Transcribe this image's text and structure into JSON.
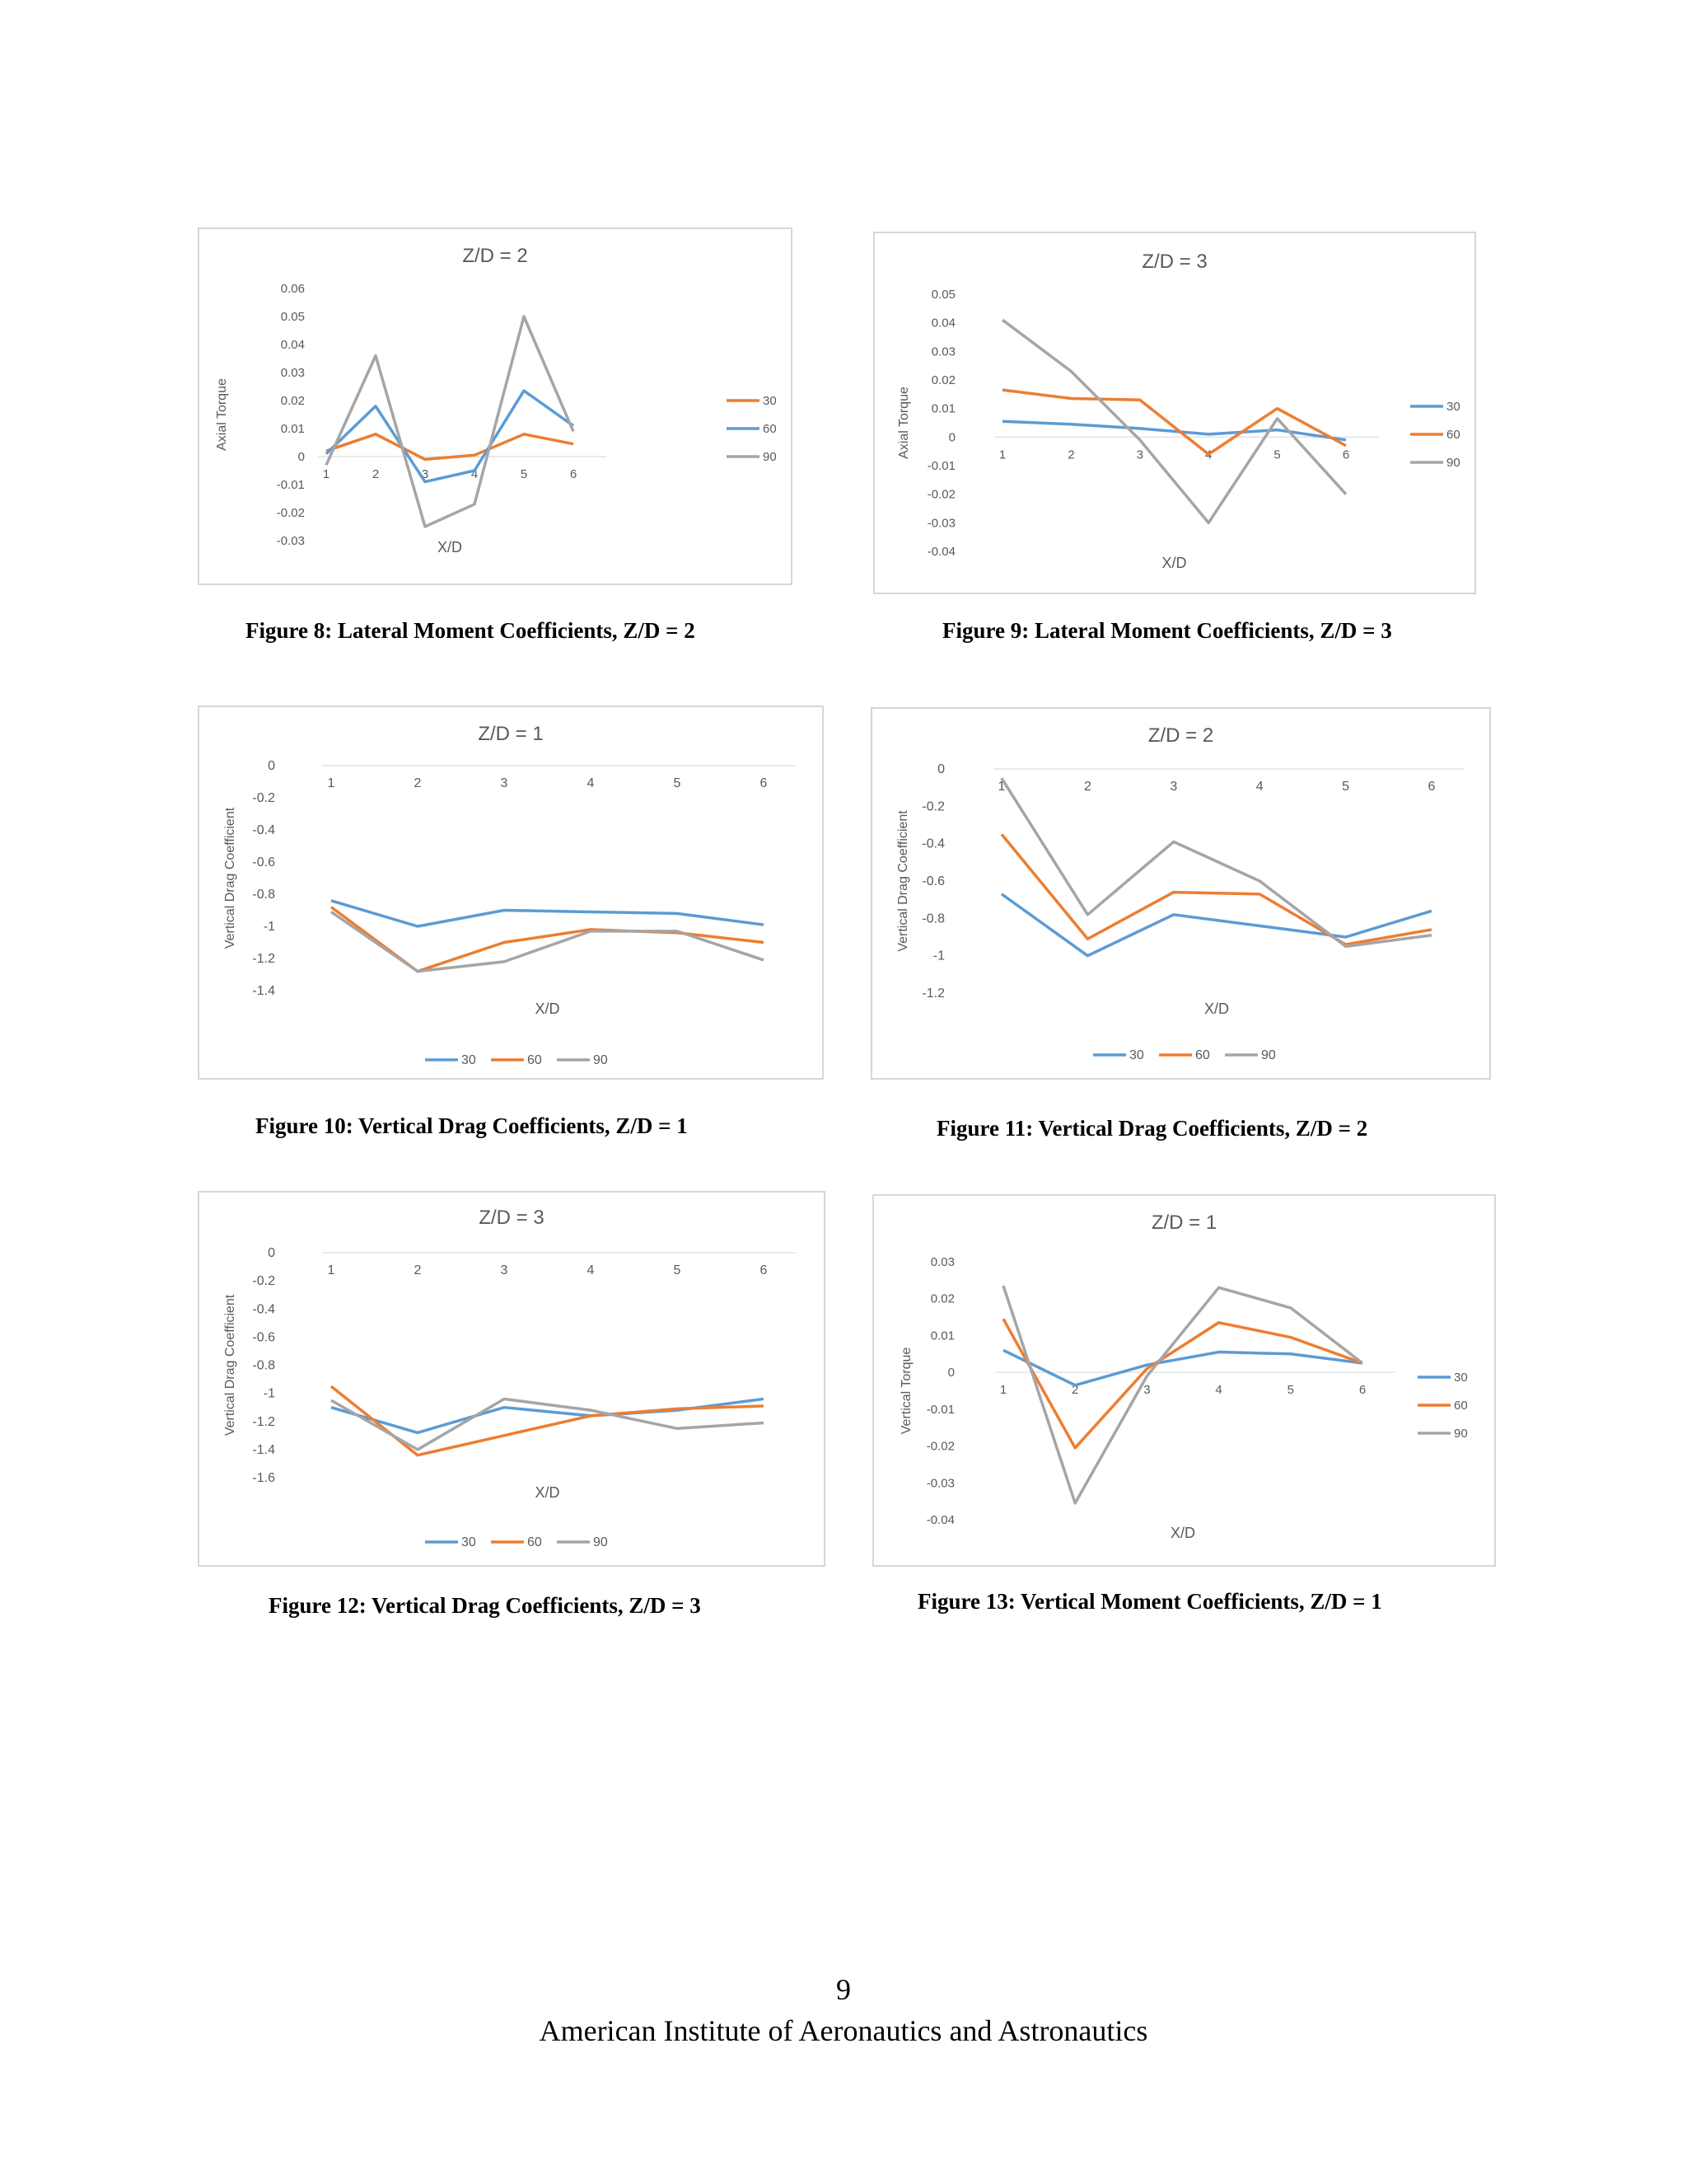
{
  "charts": [
    {
      "id": "fig8",
      "title": "Z/D = 2",
      "xlabel": "X/D",
      "ylabel": "Axial Torque",
      "caption": "Figure 8: Lateral Moment Coefficients, Z/D = 2",
      "legend": "right",
      "y_ticks": [
        "0.06",
        "0.05",
        "0.04",
        "0.03",
        "0.02",
        "0.01",
        "0",
        "-0.01",
        "-0.02",
        "-0.03"
      ],
      "x_ticks": [
        "1",
        "2",
        "3",
        "4",
        "5",
        "6"
      ]
    },
    {
      "id": "fig9",
      "title": "Z/D = 3",
      "xlabel": "X/D",
      "ylabel": "Axial Torque",
      "caption": "Figure 9: Lateral Moment Coefficients, Z/D = 3",
      "legend": "right",
      "y_ticks": [
        "0.05",
        "0.04",
        "0.03",
        "0.02",
        "0.01",
        "0",
        "-0.01",
        "-0.02",
        "-0.03",
        "-0.04"
      ],
      "x_ticks": [
        "1",
        "2",
        "3",
        "4",
        "5",
        "6"
      ]
    },
    {
      "id": "fig10",
      "title": "Z/D = 1",
      "xlabel": "X/D",
      "ylabel": "Vertical Drag Coefficient",
      "caption": "Figure 10: Vertical Drag Coefficients, Z/D = 1",
      "legend": "bottom",
      "y_ticks": [
        "0",
        "-0.2",
        "-0.4",
        "-0.6",
        "-0.8",
        "-1",
        "-1.2",
        "-1.4"
      ],
      "x_ticks": [
        "1",
        "2",
        "3",
        "4",
        "5",
        "6"
      ]
    },
    {
      "id": "fig11",
      "title": "Z/D = 2",
      "xlabel": "X/D",
      "ylabel": "Vertical Drag Coefficient",
      "caption": "Figure 11: Vertical Drag Coefficients, Z/D = 2",
      "legend": "bottom",
      "y_ticks": [
        "0",
        "-0.2",
        "-0.4",
        "-0.6",
        "-0.8",
        "-1",
        "-1.2"
      ],
      "x_ticks": [
        "1",
        "2",
        "3",
        "4",
        "5",
        "6"
      ]
    },
    {
      "id": "fig12",
      "title": "Z/D = 3",
      "xlabel": "X/D",
      "ylabel": "Vertical Drag Coefficient",
      "caption": "Figure 12: Vertical Drag Coefficients, Z/D = 3",
      "legend": "bottom",
      "y_ticks": [
        "0",
        "-0.2",
        "-0.4",
        "-0.6",
        "-0.8",
        "-1",
        "-1.2",
        "-1.4",
        "-1.6"
      ],
      "x_ticks": [
        "1",
        "2",
        "3",
        "4",
        "5",
        "6"
      ]
    },
    {
      "id": "fig13",
      "title": "Z/D = 1",
      "xlabel": "X/D",
      "ylabel": "Vertical Torque",
      "caption": "Figure 13: Vertical Moment Coefficients, Z/D = 1",
      "legend": "right",
      "y_ticks": [
        "0.03",
        "0.02",
        "0.01",
        "0",
        "-0.01",
        "-0.02",
        "-0.03",
        "-0.04"
      ],
      "x_ticks": [
        "1",
        "2",
        "3",
        "4",
        "5",
        "6"
      ]
    }
  ],
  "chart_data": [
    {
      "type": "line",
      "title": "Z/D = 2",
      "xlabel": "X/D",
      "ylabel": "Axial Torque",
      "x": [
        1,
        2,
        3,
        4,
        5,
        6
      ],
      "ylim": [
        -0.03,
        0.06
      ],
      "series": [
        {
          "name": "30",
          "color": "#ED7D31",
          "values": [
            0.002,
            0.008,
            -0.001,
            0.0005,
            0.008,
            0.0045
          ]
        },
        {
          "name": "60",
          "color": "#5B9BD5",
          "values": [
            0.001,
            0.018,
            -0.009,
            -0.005,
            0.0235,
            0.011
          ]
        },
        {
          "name": "90",
          "color": "#A5A5A5",
          "values": [
            -0.003,
            0.036,
            -0.025,
            -0.017,
            0.05,
            0.009
          ]
        }
      ]
    },
    {
      "type": "line",
      "title": "Z/D = 3",
      "xlabel": "X/D",
      "ylabel": "Axial Torque",
      "x": [
        1,
        2,
        3,
        4,
        5,
        6
      ],
      "ylim": [
        -0.04,
        0.05
      ],
      "series": [
        {
          "name": "30",
          "color": "#5B9BD5",
          "values": [
            0.0055,
            0.0045,
            0.003,
            0.001,
            0.0025,
            -0.001
          ]
        },
        {
          "name": "60",
          "color": "#ED7D31",
          "values": [
            0.0165,
            0.0135,
            0.013,
            -0.006,
            0.01,
            -0.003
          ]
        },
        {
          "name": "90",
          "color": "#A5A5A5",
          "values": [
            0.041,
            0.023,
            -0.001,
            -0.03,
            0.0065,
            -0.02
          ]
        }
      ]
    },
    {
      "type": "line",
      "title": "Z/D = 1",
      "xlabel": "X/D",
      "ylabel": "Vertical Drag Coefficient",
      "x": [
        1,
        2,
        3,
        4,
        5,
        6
      ],
      "ylim": [
        -1.4,
        0
      ],
      "series": [
        {
          "name": "30",
          "color": "#5B9BD5",
          "values": [
            -0.84,
            -1.0,
            -0.9,
            -0.91,
            -0.92,
            -0.99
          ]
        },
        {
          "name": "60",
          "color": "#ED7D31",
          "values": [
            -0.88,
            -1.28,
            -1.1,
            -1.02,
            -1.04,
            -1.1
          ]
        },
        {
          "name": "90",
          "color": "#A5A5A5",
          "values": [
            -0.91,
            -1.28,
            -1.22,
            -1.03,
            -1.03,
            -1.21
          ]
        }
      ]
    },
    {
      "type": "line",
      "title": "Z/D = 2",
      "xlabel": "X/D",
      "ylabel": "Vertical Drag Coefficient",
      "x": [
        1,
        2,
        3,
        4,
        5,
        6
      ],
      "ylim": [
        -1.2,
        0
      ],
      "series": [
        {
          "name": "30",
          "color": "#5B9BD5",
          "values": [
            -0.67,
            -1.0,
            -0.78,
            -0.84,
            -0.9,
            -0.76
          ]
        },
        {
          "name": "60",
          "color": "#ED7D31",
          "values": [
            -0.35,
            -0.91,
            -0.66,
            -0.67,
            -0.94,
            -0.86
          ]
        },
        {
          "name": "90",
          "color": "#A5A5A5",
          "values": [
            -0.05,
            -0.78,
            -0.39,
            -0.6,
            -0.95,
            -0.89
          ]
        }
      ]
    },
    {
      "type": "line",
      "title": "Z/D = 3",
      "xlabel": "X/D",
      "ylabel": "Vertical Drag Coefficient",
      "x": [
        1,
        2,
        3,
        4,
        5,
        6
      ],
      "ylim": [
        -1.6,
        0
      ],
      "series": [
        {
          "name": "30",
          "color": "#5B9BD5",
          "values": [
            -1.1,
            -1.28,
            -1.1,
            -1.16,
            -1.12,
            -1.04
          ]
        },
        {
          "name": "60",
          "color": "#ED7D31",
          "values": [
            -0.95,
            -1.44,
            -1.3,
            -1.16,
            -1.11,
            -1.09
          ]
        },
        {
          "name": "90",
          "color": "#A5A5A5",
          "values": [
            -1.05,
            -1.4,
            -1.04,
            -1.12,
            -1.25,
            -1.21
          ]
        }
      ]
    },
    {
      "type": "line",
      "title": "Z/D = 1",
      "xlabel": "X/D",
      "ylabel": "Vertical Torque",
      "x": [
        1,
        2,
        3,
        4,
        5,
        6
      ],
      "ylim": [
        -0.04,
        0.03
      ],
      "series": [
        {
          "name": "30",
          "color": "#5B9BD5",
          "values": [
            0.006,
            -0.0035,
            0.002,
            0.0055,
            0.005,
            0.0025
          ]
        },
        {
          "name": "60",
          "color": "#ED7D31",
          "values": [
            0.0145,
            -0.0205,
            0.001,
            0.0135,
            0.0095,
            0.0025
          ]
        },
        {
          "name": "90",
          "color": "#A5A5A5",
          "values": [
            0.0235,
            -0.0355,
            -0.001,
            0.023,
            0.0175,
            0.0025
          ]
        }
      ]
    }
  ],
  "footer": {
    "page_number": "9",
    "organization": "American Institute of Aeronautics and Astronautics"
  }
}
